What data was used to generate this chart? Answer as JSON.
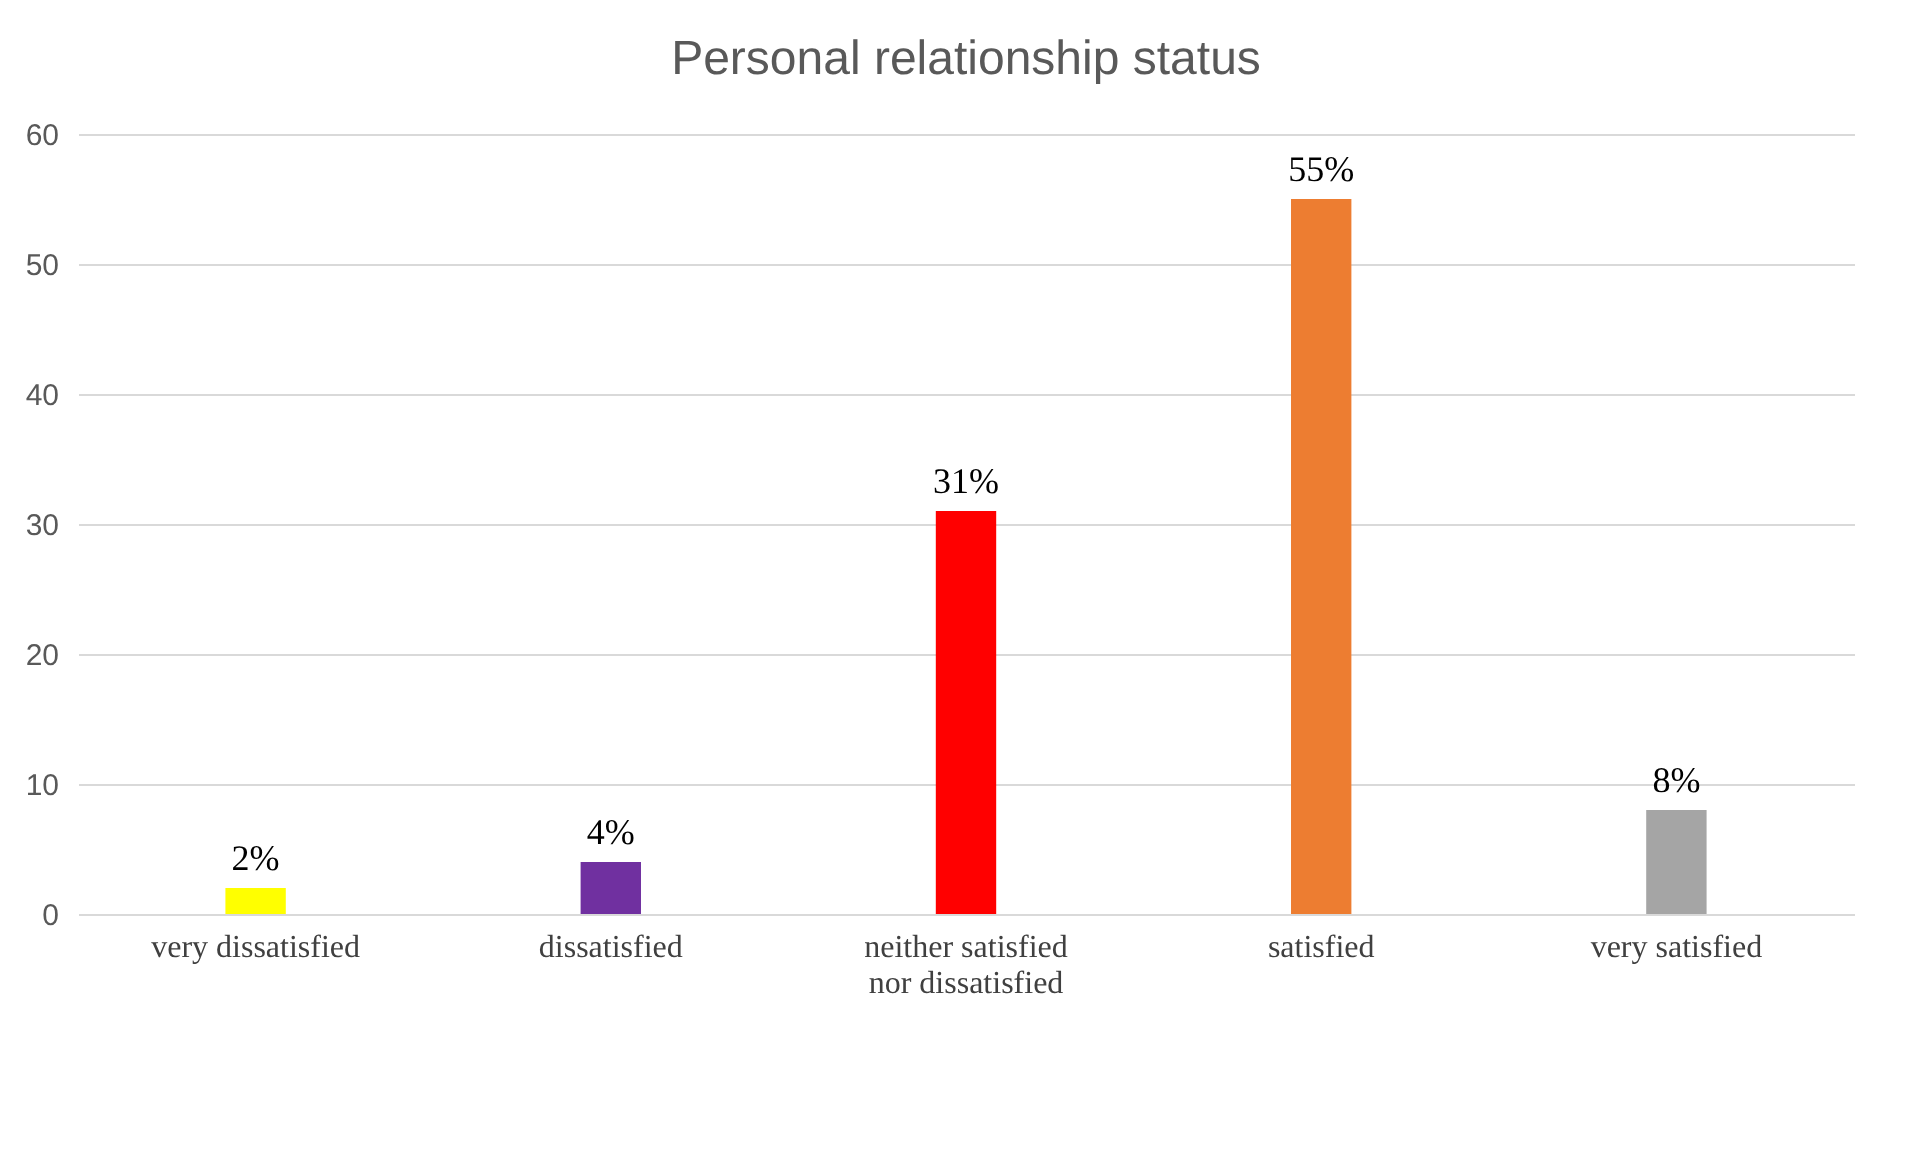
{
  "chart_data": {
    "type": "bar",
    "title": "Personal relationship status",
    "categories": [
      "very dissatisfied",
      "dissatisfied",
      "neither satisfied nor dissatisfied",
      "satisfied",
      "very satisfied"
    ],
    "values": [
      2,
      4,
      31,
      55,
      8
    ],
    "value_labels": [
      "2%",
      "4%",
      "31%",
      "55%",
      "8%"
    ],
    "colors": [
      "#ffff00",
      "#7030a0",
      "#ff0000",
      "#ed7d31",
      "#a5a5a5"
    ],
    "ylim": [
      0,
      60
    ],
    "yticks": [
      0,
      10,
      20,
      30,
      40,
      50,
      60
    ],
    "grid": "y",
    "legend": false
  }
}
